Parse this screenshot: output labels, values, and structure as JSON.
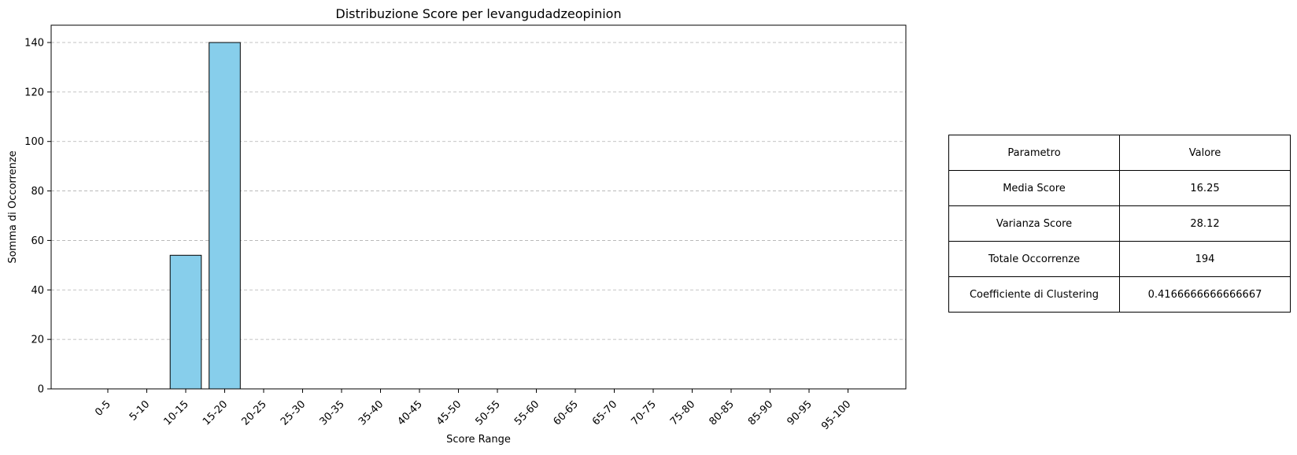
{
  "chart_data": {
    "type": "bar",
    "title": "Distribuzione Score per levangudadzeopinion",
    "xlabel": "Score Range",
    "ylabel": "Somma di Occorrenze",
    "categories": [
      "0-5",
      "5-10",
      "10-15",
      "15-20",
      "20-25",
      "25-30",
      "30-35",
      "35-40",
      "40-45",
      "45-50",
      "50-55",
      "55-60",
      "60-65",
      "65-70",
      "70-75",
      "75-80",
      "80-85",
      "85-90",
      "90-95",
      "95-100"
    ],
    "values": [
      0,
      0,
      54,
      140,
      0,
      0,
      0,
      0,
      0,
      0,
      0,
      0,
      0,
      0,
      0,
      0,
      0,
      0,
      0,
      0
    ],
    "ylim": [
      0,
      147
    ],
    "yticks": [
      0,
      20,
      40,
      60,
      80,
      100,
      120,
      140
    ],
    "grid": "y-dashed",
    "bar_color": "#87CEEB",
    "edge_color": "#000000"
  },
  "table": {
    "header": [
      "Parametro",
      "Valore"
    ],
    "rows": [
      [
        "Media Score",
        "16.25"
      ],
      [
        "Varianza Score",
        "28.12"
      ],
      [
        "Totale Occorrenze",
        "194"
      ],
      [
        "Coefficiente di Clustering",
        "0.4166666666666667"
      ]
    ]
  }
}
